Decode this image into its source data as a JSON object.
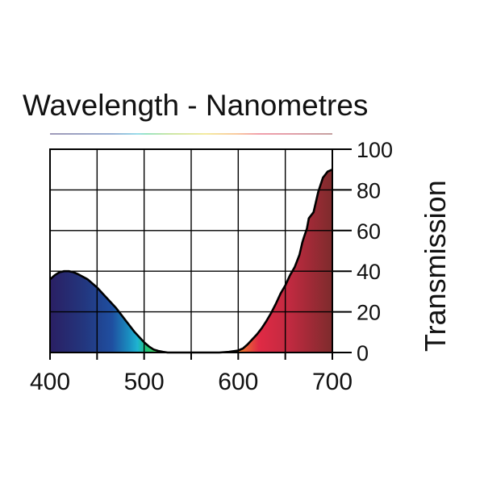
{
  "chart_data": {
    "type": "area",
    "title": "Wavelength - Nanometres",
    "xlabel": "Wavelength - Nanometres",
    "ylabel": "Transmission",
    "xlim": [
      400,
      700
    ],
    "ylim": [
      0,
      100
    ],
    "x_ticks": [
      "400",
      "500",
      "600",
      "700"
    ],
    "y_ticks": [
      "0",
      "20",
      "40",
      "60",
      "80",
      "100"
    ],
    "grid": true,
    "series": [
      {
        "name": "Transmission",
        "x": [
          400,
          405,
          410,
          415,
          420,
          425,
          430,
          440,
          450,
          460,
          470,
          480,
          490,
          500,
          505,
          510,
          515,
          520,
          525,
          530,
          540,
          550,
          560,
          570,
          580,
          590,
          600,
          605,
          610,
          615,
          620,
          625,
          630,
          635,
          640,
          645,
          650,
          655,
          660,
          665,
          668,
          670,
          673,
          675,
          680,
          685,
          690,
          695,
          700
        ],
        "values": [
          36,
          38,
          39.5,
          40,
          40,
          39.5,
          38.5,
          36,
          32,
          27,
          22,
          16,
          10,
          5,
          3,
          1.5,
          0.8,
          0.3,
          0,
          0,
          0,
          0,
          0,
          0,
          0,
          0.3,
          1,
          2,
          4,
          6.5,
          9,
          12,
          15.5,
          19.5,
          24,
          29,
          33,
          38,
          42,
          48,
          54,
          57,
          61,
          66,
          69,
          79,
          86,
          89,
          90
        ]
      }
    ],
    "spectrum_colors": {
      "violet": "#2a1f63",
      "blue": "#1f4fa0",
      "cyan": "#1fb3d1",
      "green": "#1cc37a",
      "red": "#e02a45",
      "dark_red": "#7d2b2c",
      "curve": "#000000"
    }
  }
}
